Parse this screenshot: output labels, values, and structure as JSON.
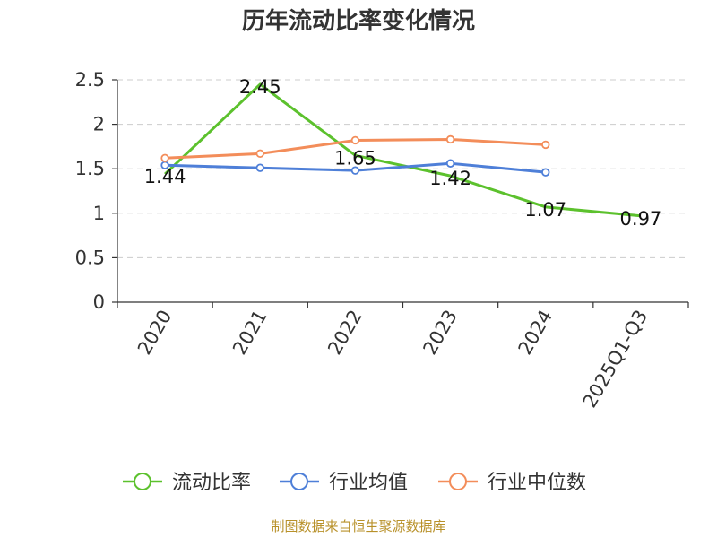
{
  "chart": {
    "title": "历年流动比率变化情况",
    "source": "制图数据来自恒生聚源数据库"
  },
  "colors": {
    "ratio": "#5cc12d",
    "industry_avg": "#4e7fd8",
    "industry_median": "#f38d5a",
    "axis": "#333333",
    "grid": "#cccccc",
    "source": "#b8912a"
  },
  "chart_data": {
    "type": "line",
    "title": "历年流动比率变化情况",
    "categories": [
      "2020",
      "2021",
      "2022",
      "2023",
      "2024",
      "2025Q1-Q3"
    ],
    "ylim": [
      0,
      2.5
    ],
    "yticks": [
      0,
      0.5,
      1,
      1.5,
      2,
      2.5
    ],
    "ytick_labels": [
      "0",
      "0.5",
      "1",
      "1.5",
      "2",
      "2.5"
    ],
    "grid": true,
    "legend_position": "bottom",
    "series": [
      {
        "name": "流动比率",
        "key": "ratio",
        "values": [
          1.44,
          2.45,
          1.65,
          1.42,
          1.07,
          0.97
        ],
        "labels": [
          "1.44",
          "2.45",
          "1.65",
          "1.42",
          "1.07",
          "0.97"
        ],
        "show_markers": false
      },
      {
        "name": "行业均值",
        "key": "industry_avg",
        "values": [
          1.54,
          1.51,
          1.48,
          1.56,
          1.46,
          null
        ],
        "show_markers": true
      },
      {
        "name": "行业中位数",
        "key": "industry_median",
        "values": [
          1.62,
          1.67,
          1.82,
          1.83,
          1.77,
          null
        ],
        "show_markers": true
      }
    ]
  }
}
